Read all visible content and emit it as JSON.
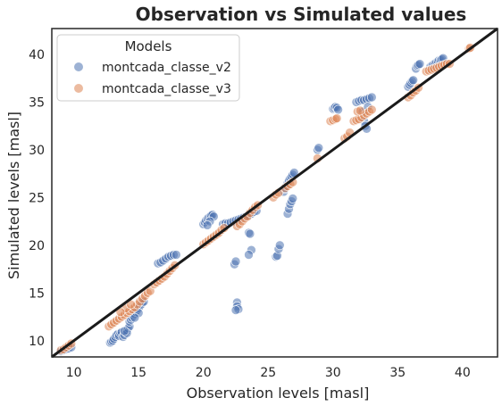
{
  "chart_data": {
    "type": "scatter",
    "title": "Observation vs Simulated values",
    "xlabel": "Observation levels [masl]",
    "ylabel": "Simulated levels [masl]",
    "xlim": [
      8.3,
      42.7
    ],
    "ylim": [
      8.3,
      42.7
    ],
    "xticks": [
      10,
      15,
      20,
      25,
      30,
      35,
      40
    ],
    "yticks": [
      10,
      15,
      20,
      25,
      30,
      35,
      40
    ],
    "grid": false,
    "legend": {
      "title": "Models",
      "position": "top-left"
    },
    "reference_line": {
      "from": [
        8.3,
        8.3
      ],
      "to": [
        42.7,
        42.7
      ],
      "color": "#1a1a1a"
    },
    "series": [
      {
        "name": "montcada_classe_v2",
        "color": "#4c72b0",
        "points": [
          [
            9.0,
            8.9
          ],
          [
            9.2,
            9.0
          ],
          [
            9.4,
            9.1
          ],
          [
            9.6,
            9.2
          ],
          [
            9.8,
            9.3
          ],
          [
            12.8,
            9.8
          ],
          [
            12.9,
            9.9
          ],
          [
            13.0,
            10.0
          ],
          [
            13.1,
            10.2
          ],
          [
            13.2,
            10.4
          ],
          [
            13.3,
            10.6
          ],
          [
            13.4,
            10.7
          ],
          [
            13.5,
            10.5
          ],
          [
            13.6,
            10.8
          ],
          [
            13.7,
            10.9
          ],
          [
            13.8,
            10.4
          ],
          [
            13.9,
            10.6
          ],
          [
            14.0,
            10.9
          ],
          [
            14.1,
            11.1
          ],
          [
            14.2,
            11.3
          ],
          [
            14.3,
            11.5
          ],
          [
            14.1,
            10.8
          ],
          [
            13.9,
            11.0
          ],
          [
            14.3,
            12.0
          ],
          [
            14.4,
            12.2
          ],
          [
            14.5,
            12.4
          ],
          [
            14.6,
            12.6
          ],
          [
            14.7,
            12.8
          ],
          [
            14.8,
            13.0
          ],
          [
            14.9,
            13.2
          ],
          [
            15.0,
            13.4
          ],
          [
            15.1,
            13.6
          ],
          [
            15.2,
            13.8
          ],
          [
            15.3,
            14.0
          ],
          [
            15.4,
            14.1
          ],
          [
            15.0,
            12.9
          ],
          [
            14.7,
            12.4
          ],
          [
            16.5,
            18.1
          ],
          [
            16.7,
            18.2
          ],
          [
            16.9,
            18.4
          ],
          [
            17.1,
            18.6
          ],
          [
            17.3,
            18.8
          ],
          [
            17.5,
            18.9
          ],
          [
            17.7,
            19.0
          ],
          [
            17.9,
            19.0
          ],
          [
            20.0,
            22.2
          ],
          [
            20.1,
            22.4
          ],
          [
            20.2,
            22.6
          ],
          [
            20.3,
            22.8
          ],
          [
            20.4,
            22.9
          ],
          [
            20.5,
            23.0
          ],
          [
            20.6,
            23.1
          ],
          [
            20.7,
            23.2
          ],
          [
            20.8,
            23.0
          ],
          [
            20.5,
            22.5
          ],
          [
            20.3,
            22.1
          ],
          [
            21.5,
            22.2
          ],
          [
            21.7,
            22.3
          ],
          [
            21.9,
            22.3
          ],
          [
            22.1,
            22.4
          ],
          [
            22.3,
            22.5
          ],
          [
            22.5,
            22.6
          ],
          [
            22.7,
            22.7
          ],
          [
            22.9,
            22.8
          ],
          [
            23.1,
            22.9
          ],
          [
            23.3,
            23.0
          ],
          [
            23.5,
            23.1
          ],
          [
            23.7,
            23.3
          ],
          [
            23.9,
            23.5
          ],
          [
            24.1,
            23.6
          ],
          [
            22.4,
            18.0
          ],
          [
            22.5,
            18.3
          ],
          [
            22.6,
            14.0
          ],
          [
            22.6,
            13.6
          ],
          [
            22.7,
            13.3
          ],
          [
            22.5,
            13.2
          ],
          [
            23.5,
            21.3
          ],
          [
            23.6,
            21.2
          ],
          [
            23.7,
            19.5
          ],
          [
            23.5,
            19.0
          ],
          [
            25.6,
            18.8
          ],
          [
            25.7,
            18.9
          ],
          [
            25.8,
            19.6
          ],
          [
            25.9,
            20.0
          ],
          [
            26.5,
            23.3
          ],
          [
            26.6,
            23.8
          ],
          [
            26.7,
            24.3
          ],
          [
            26.8,
            24.6
          ],
          [
            26.9,
            24.9
          ],
          [
            26.2,
            25.6
          ],
          [
            26.3,
            25.9
          ],
          [
            26.4,
            26.2
          ],
          [
            26.5,
            26.5
          ],
          [
            26.6,
            26.8
          ],
          [
            26.7,
            27.0
          ],
          [
            26.8,
            27.2
          ],
          [
            26.9,
            27.4
          ],
          [
            27.0,
            27.6
          ],
          [
            28.8,
            30.0
          ],
          [
            28.9,
            30.2
          ],
          [
            30.0,
            34.3
          ],
          [
            30.1,
            34.4
          ],
          [
            30.2,
            34.5
          ],
          [
            30.3,
            34.4
          ],
          [
            30.4,
            34.2
          ],
          [
            31.8,
            35.0
          ],
          [
            32.0,
            35.1
          ],
          [
            32.2,
            35.2
          ],
          [
            32.4,
            35.2
          ],
          [
            32.6,
            35.3
          ],
          [
            32.8,
            35.4
          ],
          [
            33.0,
            35.5
          ],
          [
            32.3,
            34.0
          ],
          [
            32.4,
            33.0
          ],
          [
            32.5,
            32.5
          ],
          [
            32.6,
            32.2
          ],
          [
            32.7,
            34.5
          ],
          [
            35.8,
            36.6
          ],
          [
            35.9,
            36.8
          ],
          [
            36.0,
            37.0
          ],
          [
            36.1,
            37.2
          ],
          [
            36.2,
            37.3
          ],
          [
            36.4,
            38.5
          ],
          [
            36.5,
            38.8
          ],
          [
            36.6,
            38.9
          ],
          [
            36.7,
            39.0
          ],
          [
            37.5,
            38.7
          ],
          [
            37.6,
            38.8
          ],
          [
            37.7,
            38.9
          ],
          [
            37.8,
            39.0
          ],
          [
            37.9,
            39.1
          ],
          [
            38.0,
            39.2
          ],
          [
            38.1,
            39.3
          ],
          [
            38.2,
            39.4
          ],
          [
            38.3,
            39.4
          ],
          [
            38.4,
            39.5
          ],
          [
            38.5,
            39.6
          ]
        ]
      },
      {
        "name": "montcada_classe_v3",
        "color": "#dd8452",
        "points": [
          [
            9.0,
            9.0
          ],
          [
            9.2,
            9.1
          ],
          [
            9.4,
            9.3
          ],
          [
            9.6,
            9.5
          ],
          [
            9.8,
            9.7
          ],
          [
            12.7,
            11.5
          ],
          [
            12.9,
            11.7
          ],
          [
            13.1,
            11.9
          ],
          [
            13.3,
            12.1
          ],
          [
            13.5,
            12.3
          ],
          [
            13.7,
            12.5
          ],
          [
            13.9,
            12.7
          ],
          [
            14.1,
            12.9
          ],
          [
            14.3,
            13.1
          ],
          [
            14.5,
            13.3
          ],
          [
            14.7,
            13.5
          ],
          [
            14.9,
            13.8
          ],
          [
            15.1,
            14.1
          ],
          [
            15.3,
            14.4
          ],
          [
            15.5,
            14.7
          ],
          [
            15.7,
            15.0
          ],
          [
            15.9,
            15.2
          ],
          [
            14.0,
            13.4
          ],
          [
            14.4,
            13.8
          ],
          [
            13.6,
            13.0
          ],
          [
            16.2,
            15.9
          ],
          [
            16.4,
            16.1
          ],
          [
            16.6,
            16.3
          ],
          [
            16.8,
            16.5
          ],
          [
            17.0,
            16.7
          ],
          [
            17.2,
            17.0
          ],
          [
            17.4,
            17.3
          ],
          [
            17.6,
            17.6
          ],
          [
            17.8,
            17.9
          ],
          [
            20.0,
            20.1
          ],
          [
            20.2,
            20.3
          ],
          [
            20.4,
            20.5
          ],
          [
            20.6,
            20.7
          ],
          [
            20.8,
            20.9
          ],
          [
            21.0,
            21.1
          ],
          [
            21.2,
            21.3
          ],
          [
            21.4,
            21.6
          ],
          [
            21.6,
            21.8
          ],
          [
            22.6,
            22.0
          ],
          [
            22.8,
            22.2
          ],
          [
            23.0,
            22.5
          ],
          [
            23.2,
            22.8
          ],
          [
            23.4,
            23.0
          ],
          [
            23.6,
            23.4
          ],
          [
            23.8,
            23.7
          ],
          [
            24.0,
            24.0
          ],
          [
            24.2,
            24.2
          ],
          [
            25.4,
            25.0
          ],
          [
            25.6,
            25.3
          ],
          [
            25.8,
            25.5
          ],
          [
            26.3,
            26.0
          ],
          [
            26.5,
            26.2
          ],
          [
            26.7,
            26.4
          ],
          [
            26.9,
            26.6
          ],
          [
            28.8,
            29.1
          ],
          [
            29.8,
            33.0
          ],
          [
            30.0,
            33.1
          ],
          [
            30.2,
            33.2
          ],
          [
            30.3,
            33.3
          ],
          [
            30.9,
            31.2
          ],
          [
            31.1,
            31.4
          ],
          [
            31.3,
            31.8
          ],
          [
            31.6,
            33.0
          ],
          [
            31.8,
            33.1
          ],
          [
            32.0,
            33.2
          ],
          [
            32.2,
            33.4
          ],
          [
            32.4,
            33.6
          ],
          [
            32.6,
            33.8
          ],
          [
            32.8,
            34.0
          ],
          [
            33.0,
            34.2
          ],
          [
            31.9,
            34.0
          ],
          [
            32.1,
            34.1
          ],
          [
            35.8,
            35.5
          ],
          [
            36.0,
            35.7
          ],
          [
            36.2,
            36.0
          ],
          [
            36.4,
            36.2
          ],
          [
            36.6,
            36.5
          ],
          [
            37.2,
            38.2
          ],
          [
            37.4,
            38.3
          ],
          [
            37.6,
            38.4
          ],
          [
            37.8,
            38.5
          ],
          [
            38.0,
            38.6
          ],
          [
            38.2,
            38.7
          ],
          [
            38.4,
            38.8
          ],
          [
            38.6,
            38.9
          ],
          [
            38.8,
            39.0
          ],
          [
            39.0,
            39.0
          ],
          [
            40.5,
            40.6
          ],
          [
            40.6,
            40.7
          ]
        ]
      }
    ]
  }
}
